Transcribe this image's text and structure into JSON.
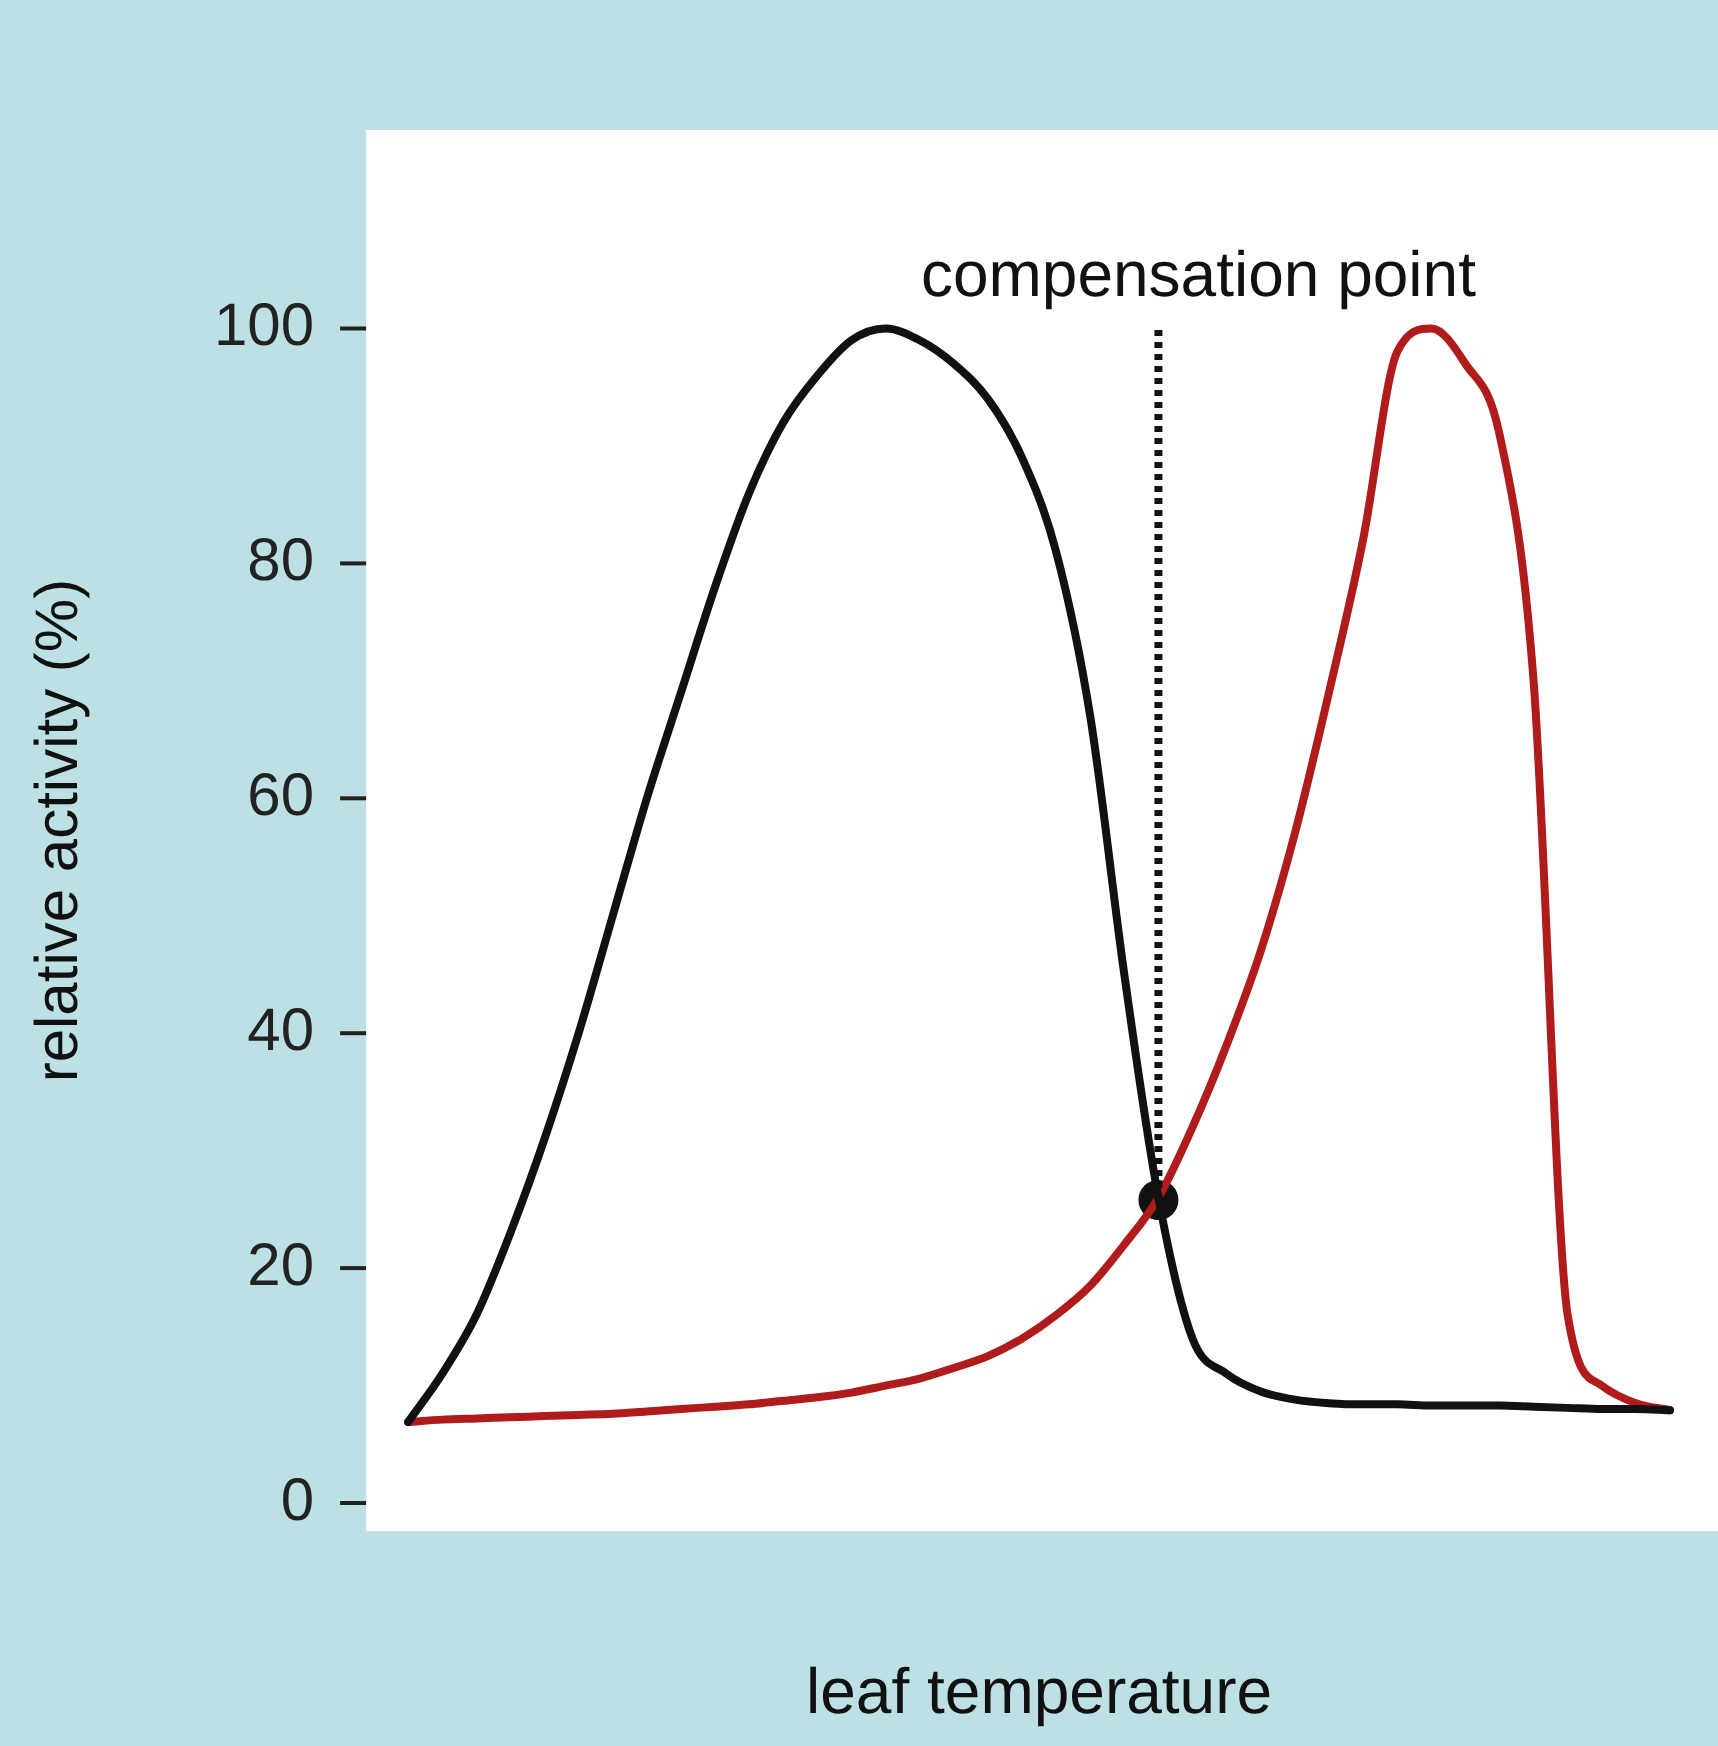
{
  "chart_data": {
    "type": "line",
    "xlabel": "leaf temperature",
    "ylabel": "relative activity (%)",
    "categories": [
      null,
      null,
      null,
      null,
      null,
      null,
      null,
      null,
      null,
      null,
      null,
      null,
      null,
      null,
      null,
      null,
      null,
      null,
      null,
      null,
      null,
      null,
      null,
      null,
      null,
      null,
      null,
      null,
      null,
      null,
      null,
      null,
      null,
      null,
      null,
      null,
      null,
      null
    ],
    "series": [
      {
        "color": "#111111",
        "values": [
          6.9,
          11,
          16,
          23,
          31,
          40,
          50,
          60,
          69,
          78,
          86,
          92,
          96,
          99,
          100,
          99,
          97,
          94,
          89,
          81,
          67,
          45,
          26,
          14,
          11,
          9.5,
          8.8,
          8.5,
          8.4,
          8.4,
          8.3,
          8.3,
          8.3,
          8.2,
          8.1,
          8,
          8,
          7.9
        ]
      },
      {
        "color": "#b01c1c",
        "values": [
          6.9,
          7.1,
          7.2,
          7.3,
          7.4,
          7.5,
          7.6,
          7.8,
          8,
          8.2,
          8.4,
          8.7,
          9,
          9.4,
          10,
          10.6,
          11.5,
          12.5,
          14,
          16,
          18.5,
          22,
          26,
          32,
          39,
          47,
          57,
          69,
          82,
          98,
          100,
          97,
          91,
          70,
          16,
          10,
          8.5,
          7.9
        ]
      },
      {
        "type": "scatter",
        "marker": "circle",
        "color": "#111111",
        "values": [
          null,
          null,
          null,
          null,
          null,
          null,
          null,
          null,
          null,
          null,
          null,
          null,
          null,
          null,
          null,
          null,
          null,
          null,
          null,
          null,
          null,
          null,
          25.8,
          null,
          null,
          null,
          null,
          null,
          null,
          null,
          null,
          null,
          null,
          null,
          null,
          null,
          null,
          null
        ]
      }
    ],
    "annotations": [
      "compensation point"
    ],
    "ylim": [
      -2.4,
      116.9
    ],
    "yticks": [
      0,
      20,
      40,
      60,
      80,
      100
    ],
    "tick_labels": "y",
    "grid": false,
    "legend": false,
    "marker": "none",
    "line_style": "solid"
  }
}
